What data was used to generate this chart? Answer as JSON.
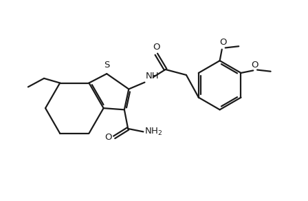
{
  "bg_color": "#ffffff",
  "line_color": "#1a1a1a",
  "line_width": 1.6,
  "font_size": 9.5,
  "fig_width": 4.48,
  "fig_height": 2.92,
  "dpi": 100,
  "xlim": [
    0,
    10
  ],
  "ylim": [
    0,
    6.5
  ]
}
